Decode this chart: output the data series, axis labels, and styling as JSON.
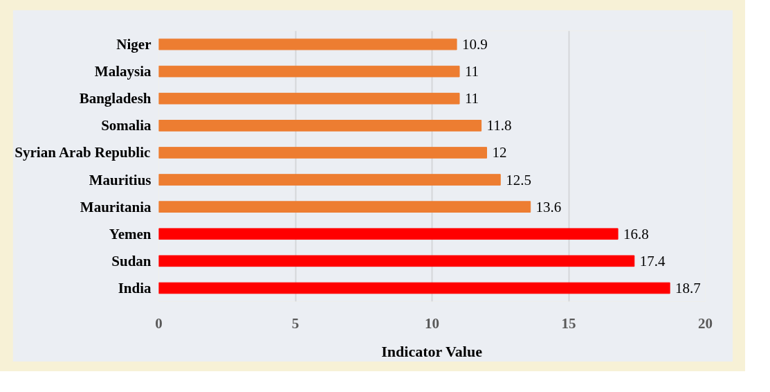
{
  "chart_data": {
    "type": "bar",
    "orientation": "horizontal",
    "xlabel": "Indicator Value",
    "categories": [
      "Niger",
      "Malaysia",
      "Bangladesh",
      "Somalia",
      "Syrian Arab Republic",
      "Mauritius",
      "Mauritania",
      "Yemen",
      "Sudan",
      "India"
    ],
    "values": [
      10.9,
      11,
      11,
      11.8,
      12,
      12.5,
      13.6,
      16.8,
      17.4,
      18.7
    ],
    "colors": [
      "#ed7d31",
      "#ed7d31",
      "#ed7d31",
      "#ed7d31",
      "#ed7d31",
      "#ed7d31",
      "#ed7d31",
      "#ff0000",
      "#ff0000",
      "#ff0000"
    ],
    "xlim": [
      0,
      20
    ],
    "xticks": [
      0,
      5,
      10,
      15,
      20
    ],
    "grid": "x",
    "data_labels": true
  }
}
